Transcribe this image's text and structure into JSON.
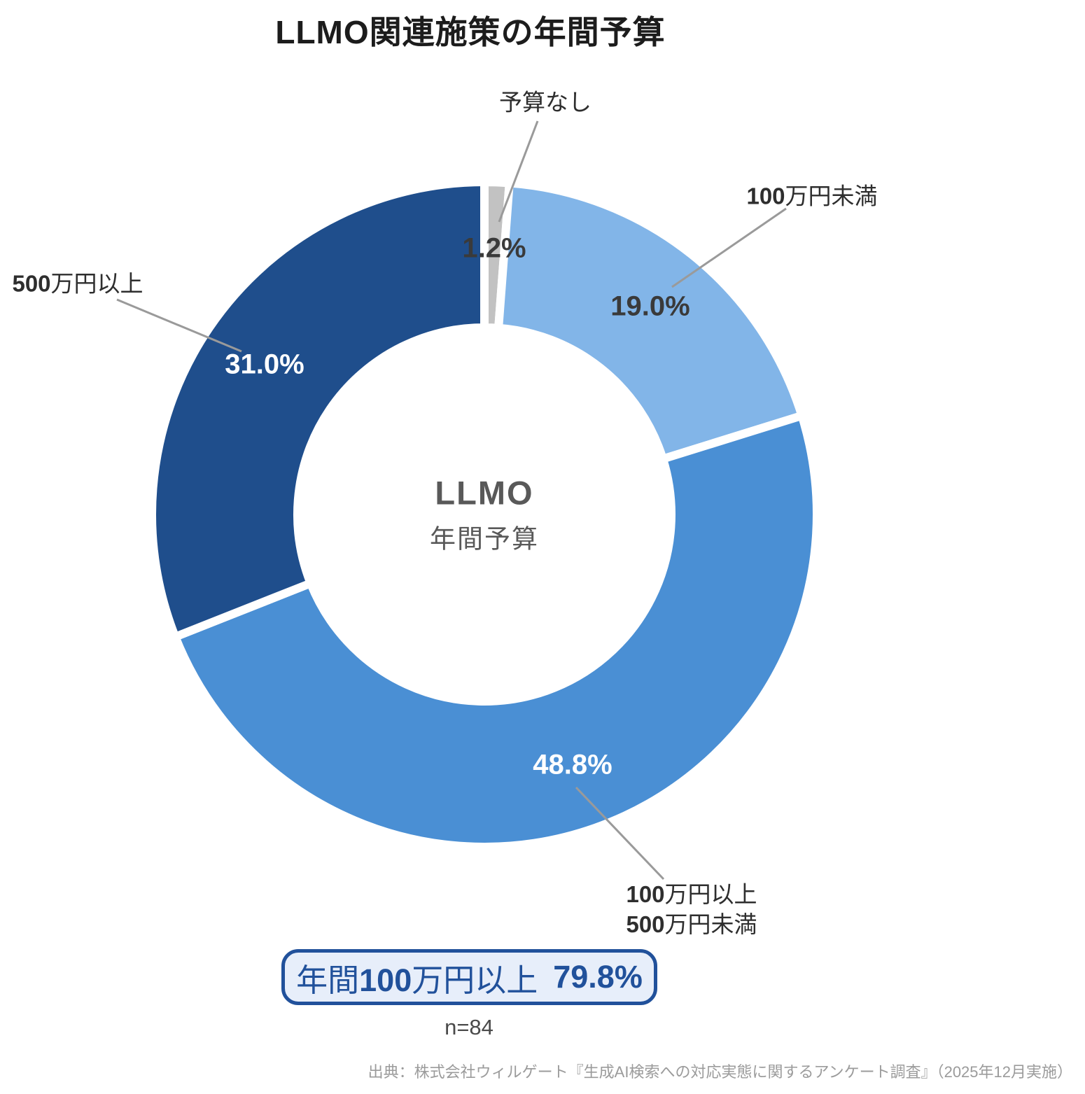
{
  "title": "LLMO関連施策の年間予算",
  "chart_data": {
    "type": "pie",
    "subtype": "donut",
    "title": "LLMO関連施策の年間予算",
    "center_title": "LLMO",
    "center_subtitle": "年間予算",
    "direction": "clockwise",
    "start_angle_deg": 0,
    "total": 100,
    "segments": [
      {
        "label": "予算なし",
        "value": 1.2,
        "pct_label": "1.2%",
        "color": "#c2c2c2",
        "pct_color": "#3a3a3a"
      },
      {
        "label": "100万円未満",
        "value": 19.0,
        "pct_label": "19.0%",
        "color": "#82b5e8",
        "pct_color": "#3a3a3a"
      },
      {
        "label": "100万円以上\n500万円未満",
        "value": 48.8,
        "pct_label": "48.8%",
        "color": "#4a8fd4",
        "pct_color": "#ffffff"
      },
      {
        "label": "500万円以上",
        "value": 31.0,
        "pct_label": "31.0%",
        "color": "#1f4e8c",
        "pct_color": "#ffffff"
      }
    ]
  },
  "callout": {
    "label": "年間100万円以上",
    "value": "79.8%"
  },
  "footnote": "n=84",
  "source": "出典：株式会社ウィルゲート『生成AI検索への対応実態に関するアンケート調査』（2025年12月実施）",
  "colors": {
    "leader_line": "#9a9a9a",
    "segment_gap": "#ffffff",
    "title_text": "#1c1c1c",
    "label_text": "#2e2e2e",
    "center_text": "#595959",
    "callout_border": "#21519b",
    "callout_text": "#21519b",
    "callout_bg": "#e7eefa",
    "footnote_text": "#4a4a4a",
    "source_text": "#9b9b9b"
  }
}
